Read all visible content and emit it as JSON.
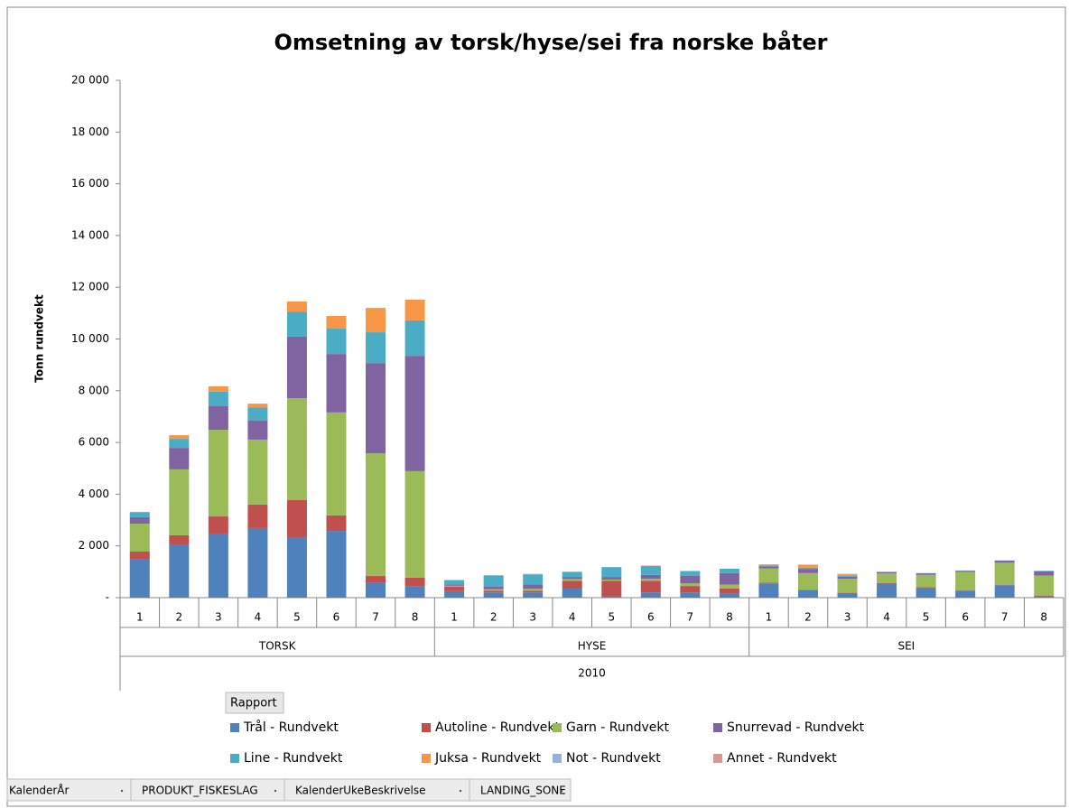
{
  "chart_data": {
    "type": "stacked_bar",
    "title": "Omsetning av torsk/hyse/sei fra norske båter",
    "ylabel": "Tonn rundvekt",
    "categories": [
      "1",
      "2",
      "3",
      "4",
      "5",
      "6",
      "7",
      "8",
      "1",
      "2",
      "3",
      "4",
      "5",
      "6",
      "7",
      "8",
      "1",
      "2",
      "3",
      "4",
      "5",
      "6",
      "7",
      "8"
    ],
    "category_groups": [
      "TORSK",
      "HYSE",
      "SEI"
    ],
    "category_super": "2010",
    "ylim": [
      0,
      20000
    ],
    "yticks": [
      {
        "value": 0,
        "label": "-"
      },
      {
        "value": 2000,
        "label": "2 000"
      },
      {
        "value": 4000,
        "label": "4 000"
      },
      {
        "value": 6000,
        "label": "6 000"
      },
      {
        "value": 8000,
        "label": "8 000"
      },
      {
        "value": 10000,
        "label": "10 000"
      },
      {
        "value": 12000,
        "label": "12 000"
      },
      {
        "value": 14000,
        "label": "14 000"
      },
      {
        "value": 16000,
        "label": "16 000"
      },
      {
        "value": 18000,
        "label": "18 000"
      },
      {
        "value": 20000,
        "label": "20 000"
      }
    ],
    "grid": false,
    "series": [
      {
        "name": "Trål - Rundvekt",
        "color": "#4f81bd",
        "values": [
          1470,
          2060,
          2480,
          2690,
          2340,
          2580,
          590,
          430,
          250,
          200,
          200,
          350,
          50,
          200,
          200,
          150,
          550,
          280,
          180,
          540,
          380,
          270,
          480,
          50
        ]
      },
      {
        "name": "Autoline - Rundvekt",
        "color": "#c0504d",
        "values": [
          310,
          350,
          660,
          910,
          1430,
          600,
          250,
          340,
          170,
          70,
          60,
          300,
          600,
          450,
          250,
          200,
          30,
          20,
          20,
          20,
          20,
          20,
          20,
          20
        ]
      },
      {
        "name": "Garn - Rundvekt",
        "color": "#9bbb59",
        "values": [
          1080,
          2550,
          3350,
          2510,
          3940,
          3980,
          4740,
          4120,
          40,
          60,
          80,
          70,
          50,
          80,
          100,
          150,
          550,
          650,
          530,
          380,
          480,
          700,
          850,
          780
        ]
      },
      {
        "name": "Snurrevad - Rundvekt",
        "color": "#8064a2",
        "values": [
          250,
          830,
          910,
          730,
          2380,
          2260,
          3490,
          4460,
          50,
          90,
          170,
          80,
          100,
          150,
          300,
          450,
          80,
          150,
          80,
          50,
          60,
          50,
          80,
          170
        ]
      },
      {
        "name": "Line - Rundvekt",
        "color": "#4bacc6",
        "values": [
          200,
          350,
          560,
          520,
          970,
          980,
          1190,
          1370,
          170,
          430,
          390,
          200,
          380,
          340,
          180,
          170,
          30,
          60,
          50,
          10,
          10,
          10,
          10,
          20
        ]
      },
      {
        "name": "Juksa - Rundvekt",
        "color": "#f79646",
        "values": [
          0,
          140,
          210,
          140,
          390,
          490,
          940,
          800,
          0,
          0,
          0,
          0,
          0,
          0,
          0,
          0,
          30,
          100,
          40,
          0,
          0,
          0,
          0,
          0
        ]
      },
      {
        "name": "Not - Rundvekt",
        "color": "#95b3d7",
        "values": [
          0,
          0,
          0,
          0,
          0,
          0,
          0,
          0,
          0,
          0,
          0,
          0,
          0,
          0,
          0,
          0,
          0,
          0,
          0,
          0,
          0,
          0,
          0,
          0
        ]
      },
      {
        "name": "Annet - Rundvekt",
        "color": "#d99694",
        "values": [
          0,
          0,
          0,
          0,
          0,
          0,
          0,
          0,
          0,
          20,
          20,
          0,
          0,
          20,
          0,
          0,
          20,
          20,
          20,
          0,
          0,
          0,
          0,
          0
        ]
      }
    ],
    "legend_button": "Rapport",
    "pivot_fields": [
      "KalenderÅr",
      "PRODUKT_FISKESLAG",
      "KalenderUkeBeskrivelse",
      "LANDING_SONE"
    ]
  }
}
